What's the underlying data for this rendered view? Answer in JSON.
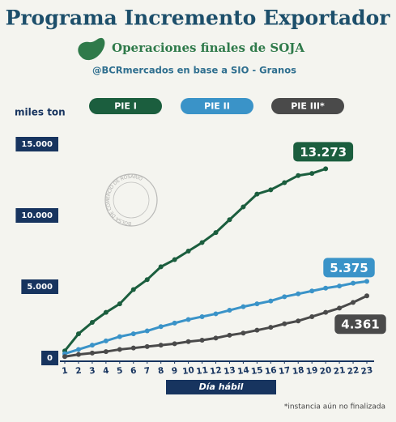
{
  "chart_data": {
    "type": "line",
    "title": "Programa Incremento Exportador",
    "subtitle": "Operaciones finales de SOJA",
    "source": "@BCRmercados en base a  SIO - Granos",
    "y_label": "miles ton",
    "x_label": "Día hábil",
    "footnote": "*instancia aún no finalizada",
    "watermark": "BOLSA DE COMERCIO DE ROSARIO",
    "x": [
      1,
      2,
      3,
      4,
      5,
      6,
      7,
      8,
      9,
      10,
      11,
      12,
      13,
      14,
      15,
      16,
      17,
      18,
      19,
      20,
      21,
      22,
      23
    ],
    "xlim": [
      1,
      23
    ],
    "xticks": [
      1,
      2,
      3,
      4,
      5,
      6,
      7,
      8,
      9,
      10,
      11,
      12,
      13,
      14,
      15,
      16,
      17,
      18,
      19,
      20,
      21,
      22,
      23
    ],
    "ylim": [
      0,
      15000
    ],
    "yticks": [
      0,
      {
        "value": 5000,
        "label": "5.000"
      },
      {
        "value": 10000,
        "label": "10.000"
      },
      {
        "value": 15000,
        "label": "15.000"
      }
    ],
    "series": [
      {
        "name": "PIE I",
        "color": "#1b5e3e",
        "values": [
          500,
          1700,
          2500,
          3200,
          3800,
          4800,
          5500,
          6400,
          6900,
          7500,
          8100,
          8800,
          9700,
          10600,
          11500,
          11800,
          12300,
          12800,
          12950,
          13273,
          null,
          null,
          null
        ],
        "value_labels": [
          null,
          null,
          null,
          null,
          null,
          null,
          null,
          null,
          null,
          null,
          null,
          null,
          null,
          null,
          null,
          null,
          null,
          null,
          null,
          "13.273",
          null,
          null,
          null
        ]
      },
      {
        "name": "PIE II",
        "color": "#3a93c8",
        "values": [
          300,
          600,
          900,
          1200,
          1500,
          1700,
          1900,
          2200,
          2450,
          2700,
          2900,
          3100,
          3350,
          3600,
          3800,
          4000,
          4300,
          4500,
          4700,
          4900,
          5050,
          5250,
          5375
        ],
        "value_labels": [
          null,
          null,
          null,
          null,
          null,
          null,
          null,
          null,
          null,
          null,
          null,
          null,
          null,
          null,
          null,
          null,
          null,
          null,
          null,
          null,
          null,
          null,
          "5.375"
        ]
      },
      {
        "name": "PIE III*",
        "color": "#4a4a4a",
        "values": [
          100,
          250,
          350,
          450,
          600,
          700,
          800,
          900,
          1000,
          1150,
          1250,
          1400,
          1600,
          1750,
          1950,
          2150,
          2400,
          2600,
          2900,
          3200,
          3500,
          3900,
          4361
        ],
        "value_labels": [
          null,
          null,
          null,
          null,
          null,
          null,
          null,
          null,
          null,
          null,
          null,
          null,
          null,
          null,
          null,
          null,
          null,
          null,
          null,
          null,
          null,
          null,
          "4.361"
        ]
      }
    ]
  }
}
